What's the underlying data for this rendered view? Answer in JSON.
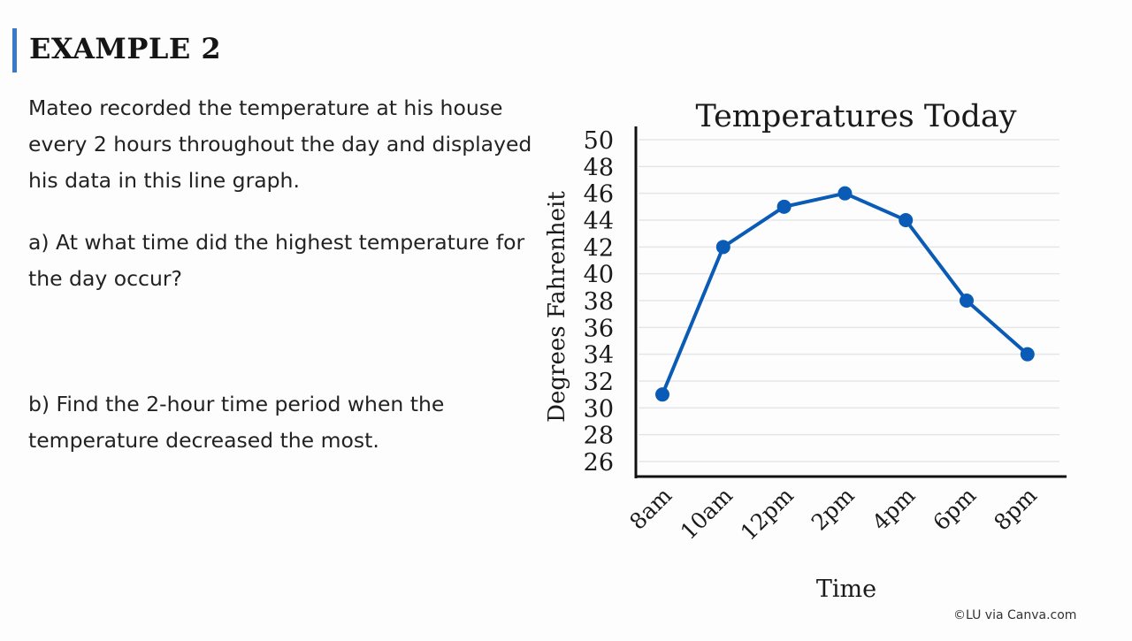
{
  "slide": {
    "heading": "EXAMPLE 2",
    "intro": "Mateo recorded the temperature at his house every 2 hours throughout the day and displayed his data in this line graph.",
    "question_a": "a) At what time did the highest temperature for the day occur?",
    "question_b": "b) Find the 2-hour time period when the temperature decreased the most.",
    "credit": "©LU via Canva.com",
    "accent_color": "#3a78c9"
  },
  "chart_data": {
    "type": "line",
    "title": "Temperatures Today",
    "xlabel": "Time",
    "ylabel": "Degrees Fahrenheit",
    "categories": [
      "8am",
      "10am",
      "12pm",
      "2pm",
      "4pm",
      "6pm",
      "8pm"
    ],
    "values": [
      31,
      42,
      45,
      46,
      44,
      38,
      34
    ],
    "ylim": [
      26,
      50
    ],
    "yticks": [
      "26",
      "28",
      "30",
      "32",
      "34",
      "36",
      "38",
      "40",
      "42",
      "44",
      "46",
      "48",
      "50"
    ],
    "grid": true,
    "line_color": "#0a5bb5"
  }
}
